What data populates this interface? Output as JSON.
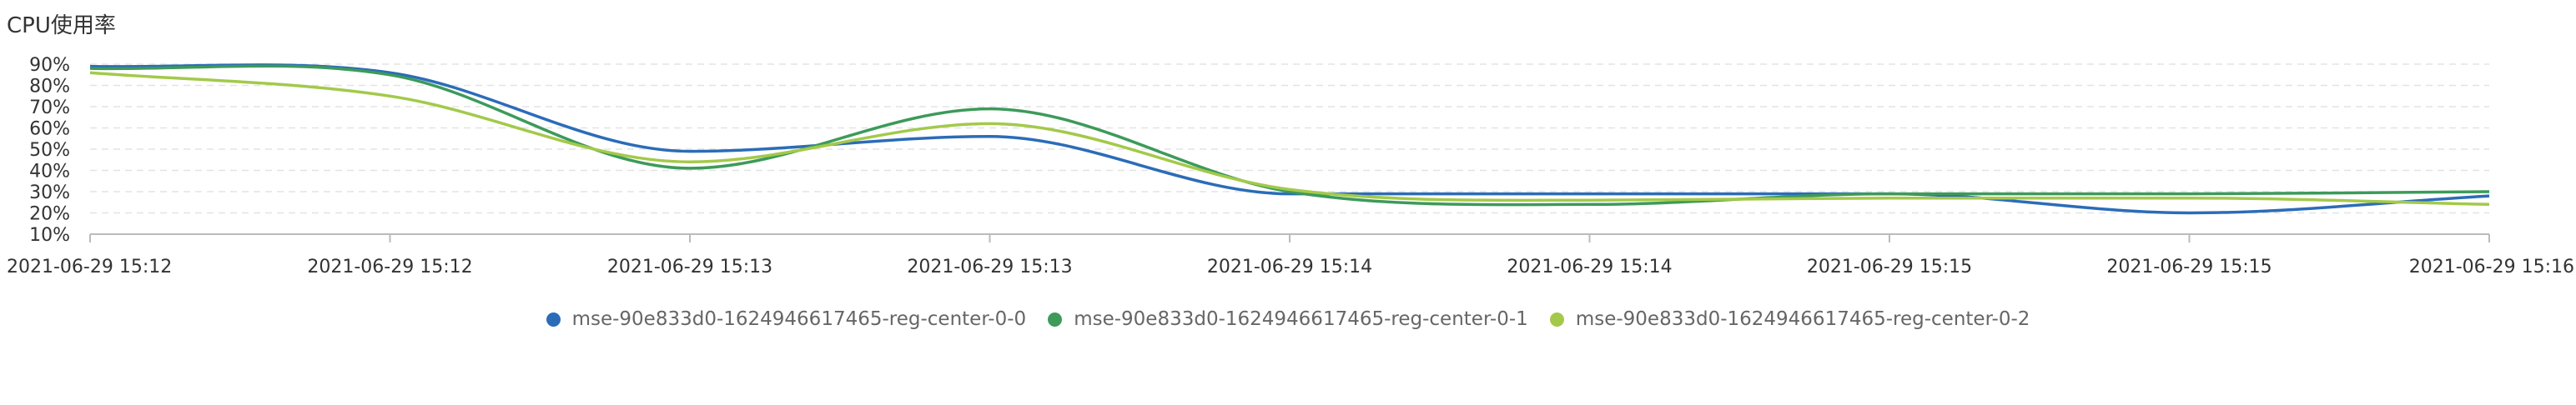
{
  "title": "CPU使用率",
  "chart_data": {
    "type": "line",
    "title": "CPU使用率",
    "xlabel": "",
    "ylabel": "",
    "ylim": [
      10,
      90
    ],
    "yticks": [
      "10%",
      "20%",
      "30%",
      "40%",
      "50%",
      "60%",
      "70%",
      "80%",
      "90%"
    ],
    "xticks": [
      "2021-06-29 15:12",
      "2021-06-29 15:12",
      "2021-06-29 15:13",
      "2021-06-29 15:13",
      "2021-06-29 15:14",
      "2021-06-29 15:14",
      "2021-06-29 15:15",
      "2021-06-29 15:15",
      "2021-06-29 15:16"
    ],
    "grid": "horizontal dashed",
    "legend_position": "bottom",
    "x": [
      0,
      1,
      2,
      3,
      4,
      5,
      6,
      7,
      8
    ],
    "series": [
      {
        "name": "mse-90e833d0-1624946617465-reg-center-0-0",
        "color": "#2b6cb8",
        "values": [
          89,
          86,
          49,
          56,
          29,
          29,
          29,
          20,
          28
        ]
      },
      {
        "name": "mse-90e833d0-1624946617465-reg-center-0-1",
        "color": "#3d9a5a",
        "values": [
          88,
          85,
          41,
          69,
          30,
          24,
          29,
          29,
          30
        ]
      },
      {
        "name": "mse-90e833d0-1624946617465-reg-center-0-2",
        "color": "#a3c94a",
        "values": [
          86,
          75,
          44,
          62,
          31,
          26,
          27,
          27,
          24
        ]
      }
    ]
  }
}
